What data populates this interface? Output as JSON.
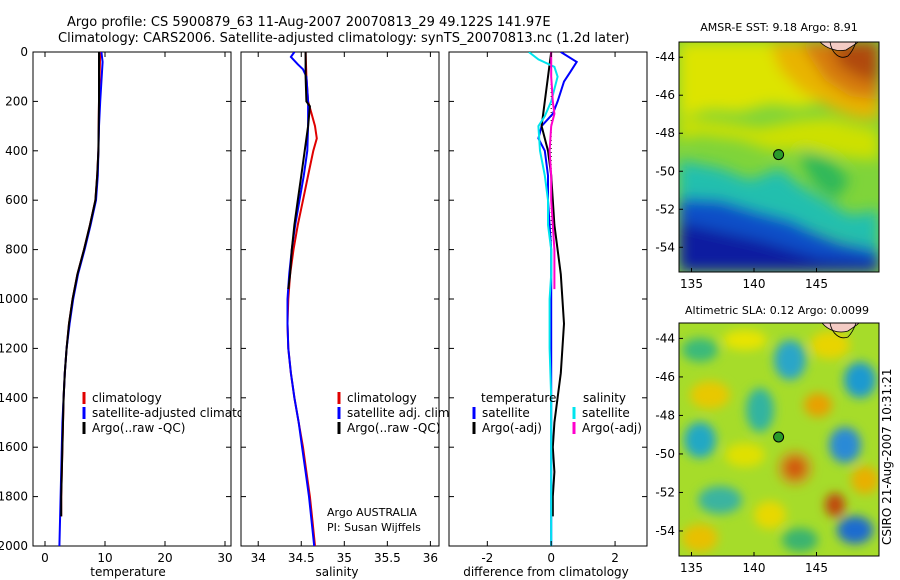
{
  "header": {
    "line1": "Argo profile: CS 5900879_63 11-Aug-2007 20070813_29 49.122S 141.97E",
    "line2": "Climatology: CARS2006. Satellite-adjusted climatology: synTS_20070813.nc (1.2d later)"
  },
  "credit": "CSIRO 21-Aug-2007 10:31:21",
  "colors": {
    "climatology": "#e00000",
    "satellite": "#0000ff",
    "argo": "#000000",
    "satellite_diff_salinity": "#00e5ee",
    "argo_adj_salinity": "#ff00cc"
  },
  "chart_data": [
    {
      "type": "line",
      "id": "temperature",
      "xlabel": "temperature",
      "ylabel": "",
      "xlim": [
        -2,
        31
      ],
      "ylim": [
        2000,
        0
      ],
      "y_reversed": true,
      "xticks": [
        0,
        10,
        20,
        30
      ],
      "yticks": [
        0,
        200,
        400,
        600,
        800,
        1000,
        1200,
        1400,
        1600,
        1800,
        2000
      ],
      "legend": [
        "climatology",
        "satellite-adjusted climatology",
        "Argo(..raw -QC)"
      ],
      "series": [
        {
          "name": "climatology",
          "color": "#e00000",
          "points": [
            [
              9.2,
              0
            ],
            [
              9.1,
              100
            ],
            [
              9.0,
              200
            ],
            [
              8.9,
              400
            ],
            [
              8.7,
              500
            ],
            [
              8.4,
              600
            ],
            [
              7.5,
              700
            ],
            [
              6.5,
              800
            ],
            [
              5.4,
              900
            ],
            [
              4.6,
              1000
            ],
            [
              4.0,
              1100
            ],
            [
              3.6,
              1200
            ],
            [
              3.3,
              1300
            ],
            [
              3.1,
              1400
            ],
            [
              3.0,
              1500
            ],
            [
              2.9,
              1600
            ],
            [
              2.8,
              1700
            ],
            [
              2.7,
              1800
            ],
            [
              2.7,
              1880
            ]
          ]
        },
        {
          "name": "satellite-adjusted climatology",
          "color": "#0000ff",
          "points": [
            [
              9.4,
              0
            ],
            [
              9.6,
              40
            ],
            [
              9.5,
              80
            ],
            [
              9.4,
              120
            ],
            [
              9.2,
              200
            ],
            [
              9.0,
              300
            ],
            [
              8.9,
              400
            ],
            [
              8.8,
              500
            ],
            [
              8.5,
              600
            ],
            [
              7.6,
              700
            ],
            [
              6.6,
              800
            ],
            [
              5.5,
              900
            ],
            [
              4.7,
              1000
            ],
            [
              4.1,
              1100
            ],
            [
              3.6,
              1200
            ],
            [
              3.3,
              1300
            ],
            [
              3.1,
              1400
            ],
            [
              2.9,
              1500
            ],
            [
              2.8,
              1600
            ],
            [
              2.7,
              1700
            ],
            [
              2.6,
              1800
            ],
            [
              2.5,
              1900
            ],
            [
              2.4,
              2000
            ]
          ]
        },
        {
          "name": "Argo(..raw -QC)",
          "color": "#000000",
          "points": [
            [
              9.0,
              0
            ],
            [
              9.0,
              100
            ],
            [
              9.0,
              200
            ],
            [
              8.9,
              400
            ],
            [
              8.7,
              500
            ],
            [
              8.4,
              600
            ],
            [
              7.5,
              700
            ],
            [
              6.5,
              800
            ],
            [
              5.4,
              900
            ],
            [
              4.6,
              1000
            ],
            [
              4.0,
              1100
            ],
            [
              3.6,
              1200
            ],
            [
              3.3,
              1300
            ],
            [
              3.1,
              1400
            ],
            [
              3.0,
              1500
            ],
            [
              2.9,
              1600
            ],
            [
              2.8,
              1700
            ],
            [
              2.7,
              1800
            ],
            [
              2.7,
              1880
            ]
          ]
        }
      ]
    },
    {
      "type": "line",
      "id": "salinity",
      "xlabel": "salinity",
      "xlim": [
        33.8,
        36.1
      ],
      "ylim": [
        2000,
        0
      ],
      "y_reversed": true,
      "xticks": [
        34,
        34.5,
        35,
        35.5,
        36
      ],
      "legend": [
        "climatology",
        "satellite adj. clim.",
        "Argo(..raw -QC)"
      ],
      "annotation": [
        "Argo AUSTRALIA",
        "PI: Susan Wijffels"
      ],
      "series": [
        {
          "name": "climatology",
          "color": "#e00000",
          "points": [
            [
              34.55,
              0
            ],
            [
              34.56,
              100
            ],
            [
              34.58,
              200
            ],
            [
              34.62,
              250
            ],
            [
              34.66,
              300
            ],
            [
              34.68,
              350
            ],
            [
              34.64,
              400
            ],
            [
              34.58,
              500
            ],
            [
              34.52,
              600
            ],
            [
              34.46,
              700
            ],
            [
              34.41,
              800
            ],
            [
              34.37,
              900
            ],
            [
              34.35,
              1000
            ],
            [
              34.34,
              1100
            ],
            [
              34.35,
              1200
            ],
            [
              34.38,
              1300
            ],
            [
              34.42,
              1400
            ],
            [
              34.47,
              1500
            ],
            [
              34.52,
              1600
            ],
            [
              34.56,
              1700
            ],
            [
              34.6,
              1800
            ],
            [
              34.63,
              1900
            ],
            [
              34.66,
              2000
            ]
          ]
        },
        {
          "name": "satellite adj. clim.",
          "color": "#0000ff",
          "points": [
            [
              34.42,
              0
            ],
            [
              34.38,
              20
            ],
            [
              34.46,
              50
            ],
            [
              34.52,
              70
            ],
            [
              34.56,
              100
            ],
            [
              34.58,
              200
            ],
            [
              34.58,
              300
            ],
            [
              34.57,
              400
            ],
            [
              34.53,
              500
            ],
            [
              34.48,
              600
            ],
            [
              34.43,
              700
            ],
            [
              34.39,
              800
            ],
            [
              34.36,
              900
            ],
            [
              34.34,
              1000
            ],
            [
              34.34,
              1100
            ],
            [
              34.35,
              1200
            ],
            [
              34.38,
              1300
            ],
            [
              34.42,
              1400
            ],
            [
              34.47,
              1500
            ],
            [
              34.51,
              1600
            ],
            [
              34.55,
              1700
            ],
            [
              34.59,
              1800
            ],
            [
              34.62,
              1900
            ],
            [
              34.65,
              2000
            ]
          ]
        },
        {
          "name": "Argo(..raw -QC)",
          "color": "#000000",
          "points": [
            [
              34.55,
              0
            ],
            [
              34.55,
              100
            ],
            [
              34.56,
              200
            ],
            [
              34.6,
              220
            ],
            [
              34.58,
              300
            ],
            [
              34.54,
              400
            ],
            [
              34.5,
              500
            ],
            [
              34.46,
              600
            ],
            [
              34.42,
              700
            ],
            [
              34.39,
              800
            ],
            [
              34.37,
              900
            ],
            [
              34.35,
              960
            ]
          ]
        }
      ]
    },
    {
      "type": "line",
      "id": "difference",
      "xlabel": "difference from climatology",
      "xlim": [
        -3.2,
        3.0
      ],
      "ylim": [
        2000,
        0
      ],
      "y_reversed": true,
      "xticks": [
        -2,
        0,
        2
      ],
      "zero_line": "dotted",
      "legend_titles": [
        "temperature",
        "salinity"
      ],
      "legend": [
        "satellite",
        "Argo(-adj)",
        "satellite",
        "Argo(-adj)"
      ],
      "series": [
        {
          "name": "temperature satellite",
          "color": "#0000ff",
          "points": [
            [
              0.3,
              0
            ],
            [
              0.8,
              40
            ],
            [
              0.6,
              80
            ],
            [
              0.4,
              120
            ],
            [
              0.2,
              200
            ],
            [
              0.05,
              250
            ],
            [
              -0.3,
              300
            ],
            [
              -0.4,
              350
            ],
            [
              -0.2,
              400
            ],
            [
              -0.1,
              500
            ],
            [
              -0.1,
              600
            ],
            [
              -0.05,
              700
            ],
            [
              0,
              800
            ],
            [
              0,
              900
            ],
            [
              0,
              1000
            ],
            [
              0,
              1200
            ],
            [
              0,
              1400
            ],
            [
              0,
              1600
            ],
            [
              0,
              1800
            ],
            [
              0,
              2000
            ]
          ]
        },
        {
          "name": "temperature Argo(-adj)",
          "color": "#000000",
          "points": [
            [
              0,
              0
            ],
            [
              -0.1,
              100
            ],
            [
              -0.2,
              200
            ],
            [
              -0.3,
              300
            ],
            [
              -0.1,
              400
            ],
            [
              0,
              500
            ],
            [
              0.05,
              600
            ],
            [
              0.1,
              700
            ],
            [
              0.2,
              800
            ],
            [
              0.3,
              900
            ],
            [
              0.35,
              1000
            ],
            [
              0.4,
              1100
            ],
            [
              0.35,
              1200
            ],
            [
              0.3,
              1300
            ],
            [
              0.2,
              1400
            ],
            [
              0.1,
              1500
            ],
            [
              0.05,
              1600
            ],
            [
              0.1,
              1700
            ],
            [
              0.05,
              1800
            ],
            [
              0.05,
              1880
            ]
          ]
        },
        {
          "name": "salinity satellite",
          "color": "#00e5ee",
          "points": [
            [
              -0.7,
              0
            ],
            [
              -0.4,
              30
            ],
            [
              0.1,
              60
            ],
            [
              0.2,
              100
            ],
            [
              0.1,
              150
            ],
            [
              0,
              200
            ],
            [
              -0.2,
              260
            ],
            [
              -0.4,
              300
            ],
            [
              -0.35,
              400
            ],
            [
              -0.2,
              500
            ],
            [
              -0.1,
              600
            ],
            [
              -0.1,
              700
            ],
            [
              0,
              800
            ],
            [
              0,
              900
            ],
            [
              -0.05,
              1000
            ],
            [
              -0.05,
              1200
            ],
            [
              0,
              1400
            ],
            [
              0,
              1600
            ],
            [
              0,
              1800
            ],
            [
              0,
              2000
            ]
          ]
        },
        {
          "name": "salinity Argo(-adj)",
          "color": "#ff00cc",
          "points": [
            [
              0,
              0
            ],
            [
              0,
              100
            ],
            [
              0.05,
              200
            ],
            [
              0.1,
              250
            ],
            [
              0,
              300
            ],
            [
              -0.05,
              400
            ],
            [
              0,
              500
            ],
            [
              0,
              600
            ],
            [
              0.05,
              700
            ],
            [
              0.1,
              800
            ],
            [
              0.1,
              900
            ],
            [
              0.1,
              960
            ]
          ]
        }
      ]
    },
    {
      "type": "heatmap",
      "id": "sst_map",
      "title": "AMSR-E SST: 9.18 Argo: 8.91",
      "xlim": [
        134,
        150
      ],
      "ylim": [
        -55.3,
        -43.2
      ],
      "xticks": [
        135,
        140,
        145
      ],
      "yticks": [
        -44,
        -46,
        -48,
        -50,
        -52,
        -54
      ],
      "marker": {
        "lon": 141.97,
        "lat": -49.122
      }
    },
    {
      "type": "heatmap",
      "id": "sla_map",
      "title": "Altimetric SLA: 0.12 Argo: 0.0099",
      "xlim": [
        134,
        150
      ],
      "ylim": [
        -55.3,
        -43.2
      ],
      "xticks": [
        135,
        140,
        145
      ],
      "yticks": [
        -44,
        -46,
        -48,
        -50,
        -52,
        -54
      ],
      "marker": {
        "lon": 141.97,
        "lat": -49.122
      }
    }
  ]
}
